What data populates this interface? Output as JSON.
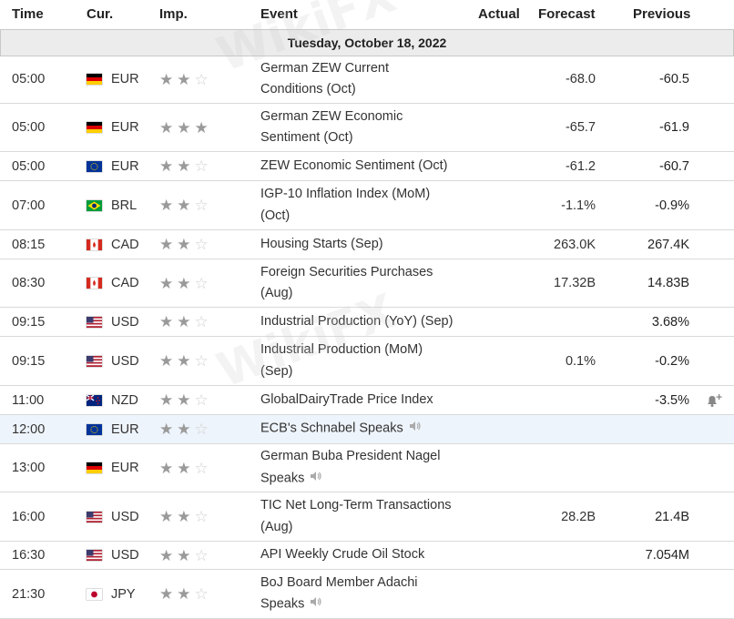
{
  "header": {
    "time": "Time",
    "currency": "Cur.",
    "importance": "Imp.",
    "event": "Event",
    "actual": "Actual",
    "forecast": "Forecast",
    "previous": "Previous"
  },
  "date": "Tuesday, October 18, 2022",
  "watermark": "WikiFX",
  "rows": [
    {
      "time": "05:00",
      "flag": "de",
      "currency": "EUR",
      "stars": 2,
      "event": [
        "German ZEW Current",
        "Conditions (Oct)"
      ],
      "speech": false,
      "actual": "",
      "forecast": "-68.0",
      "previous": "-60.5",
      "alert": false,
      "highlight": false
    },
    {
      "time": "05:00",
      "flag": "de",
      "currency": "EUR",
      "stars": 3,
      "event": [
        "German ZEW Economic",
        "Sentiment (Oct)"
      ],
      "speech": false,
      "actual": "",
      "forecast": "-65.7",
      "previous": "-61.9",
      "alert": false,
      "highlight": false
    },
    {
      "time": "05:00",
      "flag": "eu",
      "currency": "EUR",
      "stars": 2,
      "event": [
        "ZEW Economic Sentiment (Oct)"
      ],
      "speech": false,
      "actual": "",
      "forecast": "-61.2",
      "previous": "-60.7",
      "alert": false,
      "highlight": false
    },
    {
      "time": "07:00",
      "flag": "br",
      "currency": "BRL",
      "stars": 2,
      "event": [
        "IGP-10 Inflation Index (MoM)",
        "(Oct)"
      ],
      "speech": false,
      "actual": "",
      "forecast": "-1.1%",
      "previous": "-0.9%",
      "alert": false,
      "highlight": false
    },
    {
      "time": "08:15",
      "flag": "ca",
      "currency": "CAD",
      "stars": 2,
      "event": [
        "Housing Starts (Sep)"
      ],
      "speech": false,
      "actual": "",
      "forecast": "263.0K",
      "previous": "267.4K",
      "alert": false,
      "highlight": false
    },
    {
      "time": "08:30",
      "flag": "ca",
      "currency": "CAD",
      "stars": 2,
      "event": [
        "Foreign Securities Purchases",
        "(Aug)"
      ],
      "speech": false,
      "actual": "",
      "forecast": "17.32B",
      "previous": "14.83B",
      "alert": false,
      "highlight": false
    },
    {
      "time": "09:15",
      "flag": "us",
      "currency": "USD",
      "stars": 2,
      "event": [
        "Industrial Production (YoY) (Sep)"
      ],
      "speech": false,
      "actual": "",
      "forecast": "",
      "previous": "3.68%",
      "alert": false,
      "highlight": false
    },
    {
      "time": "09:15",
      "flag": "us",
      "currency": "USD",
      "stars": 2,
      "event": [
        "Industrial Production (MoM)",
        "(Sep)"
      ],
      "speech": false,
      "actual": "",
      "forecast": "0.1%",
      "previous": "-0.2%",
      "alert": false,
      "highlight": false
    },
    {
      "time": "11:00",
      "flag": "nz",
      "currency": "NZD",
      "stars": 2,
      "event": [
        "GlobalDairyTrade Price Index"
      ],
      "speech": false,
      "actual": "",
      "forecast": "",
      "previous": "-3.5%",
      "alert": true,
      "highlight": false
    },
    {
      "time": "12:00",
      "flag": "eu",
      "currency": "EUR",
      "stars": 2,
      "event": [
        "ECB's Schnabel Speaks"
      ],
      "speech": true,
      "actual": "",
      "forecast": "",
      "previous": "",
      "alert": false,
      "highlight": true
    },
    {
      "time": "13:00",
      "flag": "de",
      "currency": "EUR",
      "stars": 2,
      "event": [
        "German Buba President Nagel",
        "Speaks"
      ],
      "speech": true,
      "actual": "",
      "forecast": "",
      "previous": "",
      "alert": false,
      "highlight": false
    },
    {
      "time": "16:00",
      "flag": "us",
      "currency": "USD",
      "stars": 2,
      "event": [
        "TIC Net Long-Term Transactions",
        "(Aug)"
      ],
      "speech": false,
      "actual": "",
      "forecast": "28.2B",
      "previous": "21.4B",
      "alert": false,
      "highlight": false
    },
    {
      "time": "16:30",
      "flag": "us",
      "currency": "USD",
      "stars": 2,
      "event": [
        "API Weekly Crude Oil Stock"
      ],
      "speech": false,
      "actual": "",
      "forecast": "",
      "previous": "7.054M",
      "alert": false,
      "highlight": false
    },
    {
      "time": "21:30",
      "flag": "jp",
      "currency": "JPY",
      "stars": 2,
      "event": [
        "BoJ Board Member Adachi",
        "Speaks"
      ],
      "speech": true,
      "actual": "",
      "forecast": "",
      "previous": "",
      "alert": false,
      "highlight": false
    }
  ]
}
